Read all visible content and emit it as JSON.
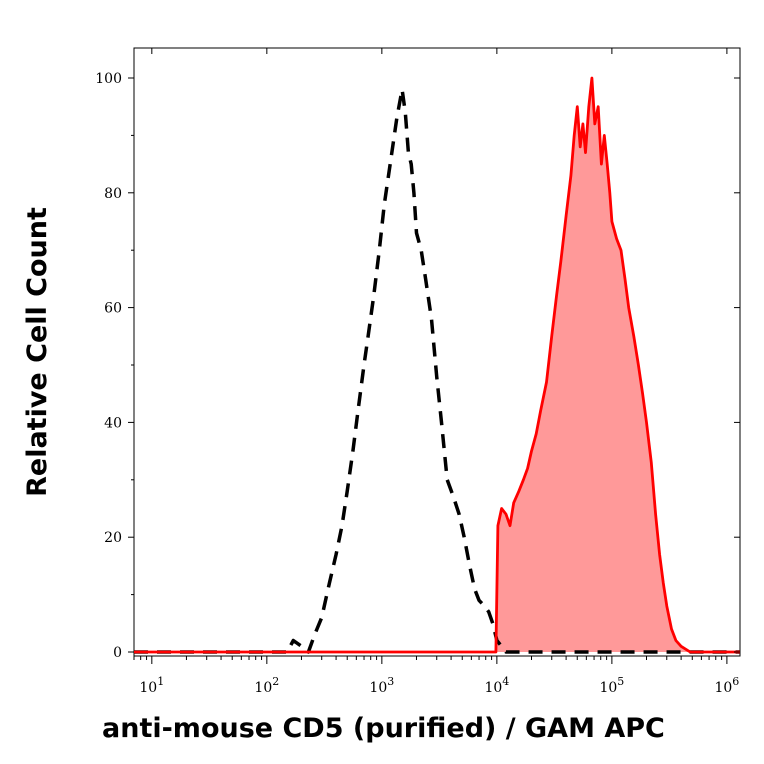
{
  "chart_data": {
    "type": "area",
    "xlabel": "anti-mouse CD5 (purified) / GAM APC",
    "ylabel": "Relative Cell Count",
    "x_scale": "log",
    "xlim": [
      7,
      1300000
    ],
    "ylim": [
      0,
      105
    ],
    "grid": false,
    "x_ticks": [
      {
        "value": 10,
        "base": "10",
        "exp": "1"
      },
      {
        "value": 100,
        "base": "10",
        "exp": "2"
      },
      {
        "value": 1000,
        "base": "10",
        "exp": "3"
      },
      {
        "value": 10000,
        "base": "10",
        "exp": "4"
      },
      {
        "value": 100000,
        "base": "10",
        "exp": "5"
      },
      {
        "value": 1000000,
        "base": "10",
        "exp": "6"
      }
    ],
    "y_ticks": [
      {
        "value": 0,
        "label": "0"
      },
      {
        "value": 20,
        "label": "20"
      },
      {
        "value": 40,
        "label": "40"
      },
      {
        "value": 60,
        "label": "60"
      },
      {
        "value": 80,
        "label": "80"
      },
      {
        "value": 100,
        "label": "100"
      }
    ],
    "series": [
      {
        "style": "dashed",
        "color": "#000000",
        "fill": "none",
        "points": [
          [
            7,
            0
          ],
          [
            150,
            0
          ],
          [
            170,
            2
          ],
          [
            200,
            1
          ],
          [
            230,
            0
          ],
          [
            260,
            3
          ],
          [
            300,
            6
          ],
          [
            350,
            12
          ],
          [
            400,
            17
          ],
          [
            450,
            22
          ],
          [
            500,
            28
          ],
          [
            560,
            35
          ],
          [
            620,
            42
          ],
          [
            700,
            50
          ],
          [
            760,
            55
          ],
          [
            850,
            62
          ],
          [
            950,
            70
          ],
          [
            1050,
            78
          ],
          [
            1200,
            86
          ],
          [
            1350,
            93
          ],
          [
            1500,
            98
          ],
          [
            1600,
            94
          ],
          [
            1700,
            87
          ],
          [
            1800,
            85
          ],
          [
            1900,
            80
          ],
          [
            2000,
            73
          ],
          [
            2200,
            70
          ],
          [
            2400,
            65
          ],
          [
            2700,
            58
          ],
          [
            3000,
            48
          ],
          [
            3300,
            40
          ],
          [
            3700,
            30
          ],
          [
            4200,
            27
          ],
          [
            4700,
            24
          ],
          [
            5200,
            20
          ],
          [
            5800,
            15
          ],
          [
            6400,
            11
          ],
          [
            7000,
            9
          ],
          [
            7800,
            8
          ],
          [
            8500,
            7
          ],
          [
            9200,
            5
          ],
          [
            10000,
            2
          ],
          [
            12000,
            0
          ],
          [
            1300000,
            0
          ]
        ]
      },
      {
        "style": "solid",
        "color": "#ff0000",
        "fill": "#ff9999",
        "points": [
          [
            7,
            0
          ],
          [
            9800,
            0
          ],
          [
            10200,
            22
          ],
          [
            11000,
            25
          ],
          [
            12000,
            24
          ],
          [
            13000,
            22
          ],
          [
            14000,
            26
          ],
          [
            15500,
            28
          ],
          [
            17000,
            30
          ],
          [
            18500,
            32
          ],
          [
            20000,
            35
          ],
          [
            22000,
            38
          ],
          [
            24000,
            42
          ],
          [
            27000,
            47
          ],
          [
            30000,
            55
          ],
          [
            33000,
            62
          ],
          [
            36000,
            68
          ],
          [
            40000,
            76
          ],
          [
            44000,
            83
          ],
          [
            47000,
            90
          ],
          [
            50000,
            95
          ],
          [
            53000,
            88
          ],
          [
            56000,
            92
          ],
          [
            59000,
            87
          ],
          [
            63000,
            95
          ],
          [
            67000,
            100
          ],
          [
            71000,
            92
          ],
          [
            76000,
            95
          ],
          [
            81000,
            85
          ],
          [
            86000,
            90
          ],
          [
            91000,
            85
          ],
          [
            96000,
            80
          ],
          [
            100000,
            75
          ],
          [
            110000,
            72
          ],
          [
            120000,
            70
          ],
          [
            130000,
            65
          ],
          [
            140000,
            60
          ],
          [
            155000,
            55
          ],
          [
            170000,
            50
          ],
          [
            185000,
            45
          ],
          [
            200000,
            40
          ],
          [
            220000,
            33
          ],
          [
            240000,
            24
          ],
          [
            260000,
            17
          ],
          [
            280000,
            12
          ],
          [
            300000,
            8
          ],
          [
            330000,
            4
          ],
          [
            360000,
            2
          ],
          [
            400000,
            1
          ],
          [
            480000,
            0
          ],
          [
            1300000,
            0
          ]
        ]
      }
    ]
  }
}
